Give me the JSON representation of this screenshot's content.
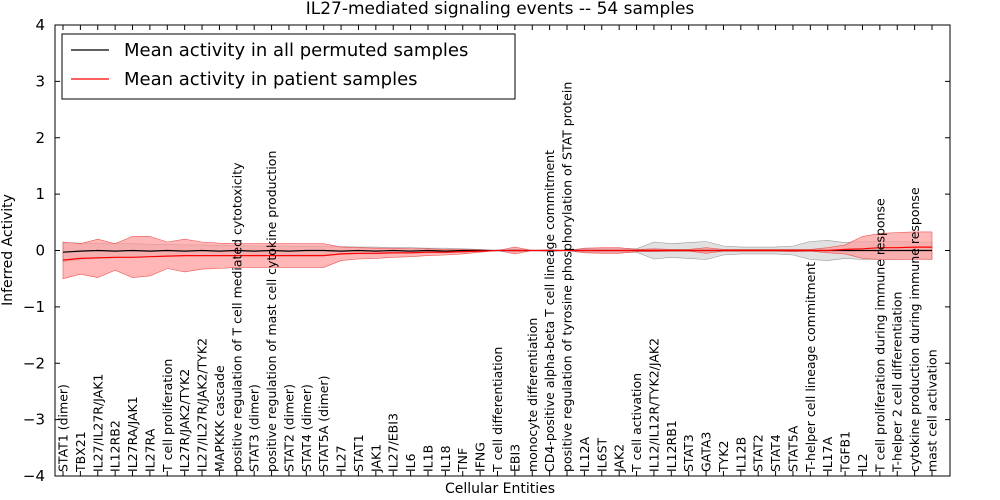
{
  "chart_data": {
    "type": "line",
    "title": "IL27-mediated signaling events -- 54 samples",
    "xlabel": "Cellular Entities",
    "ylabel": "Inferred Activity",
    "ylim": [
      -4,
      4
    ],
    "yticks": [
      "4",
      "3",
      "2",
      "1",
      "0",
      "−1",
      "−2",
      "−3",
      "−4"
    ],
    "ytick_values": [
      4,
      3,
      2,
      1,
      0,
      -1,
      -2,
      -3,
      -4
    ],
    "legend_position": "top-left",
    "categories": [
      "STAT1 (dimer)",
      "TBX21",
      "IL27/IL27R/JAK1",
      "IL12RB2",
      "IL27RA/JAK1",
      "IL27RA",
      "T cell proliferation",
      "IL27R/JAK2/TYK2",
      "IL27/IL27R/JAK2/TYK2",
      "MAPKKK cascade",
      "positive regulation of T cell mediated cytotoxicity",
      "STAT3 (dimer)",
      "positive regulation of mast cell cytokine production",
      "STAT2 (dimer)",
      "STAT4 (dimer)",
      "STAT5A (dimer)",
      "IL27",
      "STAT1",
      "JAK1",
      "IL27/EBI3",
      "IL6",
      "IL1B",
      "IL18",
      "TNF",
      "IFNG",
      "T cell differentiation",
      "EBI3",
      "monocyte differentiation",
      "CD4-positive alpha-beta T cell lineage commitment",
      "positive regulation of tyrosine phosphorylation of STAT protein",
      "IL12A",
      "IL6ST",
      "JAK2",
      "T cell activation",
      "IL12/IL12R/TYK2/JAK2",
      "IL12RB1",
      "STAT3",
      "GATA3",
      "TYK2",
      "IL12B",
      "STAT2",
      "STAT4",
      "STAT5A",
      "T-helper cell lineage commitment",
      "IL17A",
      "TGFB1",
      "IL2",
      "T cell proliferation during immune response",
      "T-helper 2 cell differentiation",
      "cytokine production during immune response",
      "mast cell activation"
    ],
    "series": [
      {
        "name": "Mean activity in all permuted samples",
        "color": "#000000",
        "values": [
          -0.03,
          -0.01,
          0.0,
          -0.01,
          0.0,
          -0.01,
          0.0,
          -0.01,
          0.0,
          -0.01,
          0.0,
          -0.01,
          0.0,
          -0.01,
          0.0,
          0.0,
          -0.01,
          0.0,
          -0.01,
          0.0,
          -0.01,
          0.0,
          -0.01,
          0.0,
          0.0,
          0.0,
          0.0,
          0.0,
          0.0,
          0.0,
          0.0,
          0.0,
          0.0,
          0.0,
          0.0,
          0.0,
          0.0,
          0.0,
          0.0,
          0.0,
          0.0,
          0.0,
          0.0,
          0.0,
          0.0,
          0.0,
          0.0,
          0.0,
          0.0,
          0.0,
          0.0
        ],
        "lower": [
          -0.2,
          -0.16,
          -0.14,
          -0.13,
          -0.12,
          -0.11,
          -0.1,
          -0.1,
          -0.09,
          -0.09,
          -0.09,
          -0.08,
          -0.08,
          -0.08,
          -0.07,
          -0.07,
          -0.07,
          -0.06,
          -0.06,
          -0.05,
          -0.05,
          -0.04,
          -0.04,
          -0.03,
          -0.02,
          0.0,
          -0.02,
          0.0,
          -0.01,
          0.0,
          -0.03,
          -0.04,
          -0.04,
          -0.03,
          -0.15,
          -0.12,
          -0.14,
          -0.16,
          -0.08,
          -0.06,
          -0.06,
          -0.06,
          -0.08,
          -0.16,
          -0.18,
          -0.14,
          -0.16,
          -0.16,
          -0.16,
          -0.15,
          -0.15
        ],
        "upper": [
          0.14,
          0.13,
          0.13,
          0.12,
          0.12,
          0.11,
          0.11,
          0.1,
          0.1,
          0.09,
          0.09,
          0.08,
          0.08,
          0.08,
          0.07,
          0.07,
          0.07,
          0.06,
          0.06,
          0.05,
          0.05,
          0.04,
          0.04,
          0.03,
          0.02,
          0.0,
          0.02,
          0.0,
          0.01,
          0.0,
          0.03,
          0.04,
          0.04,
          0.03,
          0.15,
          0.12,
          0.14,
          0.16,
          0.08,
          0.06,
          0.06,
          0.06,
          0.08,
          0.16,
          0.18,
          0.14,
          0.16,
          0.16,
          0.16,
          0.15,
          0.15
        ]
      },
      {
        "name": "Mean activity in patient samples",
        "color": "#ff0000",
        "fill": "#ff9999",
        "values": [
          -0.17,
          -0.14,
          -0.13,
          -0.12,
          -0.12,
          -0.11,
          -0.1,
          -0.09,
          -0.09,
          -0.09,
          -0.09,
          -0.09,
          -0.09,
          -0.09,
          -0.09,
          -0.09,
          -0.06,
          -0.05,
          -0.05,
          -0.04,
          -0.04,
          -0.03,
          -0.03,
          -0.02,
          -0.01,
          0.0,
          0.0,
          0.0,
          0.0,
          0.0,
          0.0,
          0.0,
          0.0,
          0.0,
          0.0,
          0.0,
          0.0,
          0.0,
          0.0,
          0.0,
          0.0,
          0.0,
          0.0,
          0.0,
          0.0,
          0.02,
          0.03,
          0.05,
          0.05,
          0.06,
          0.06
        ],
        "lower": [
          -0.5,
          -0.42,
          -0.48,
          -0.35,
          -0.48,
          -0.45,
          -0.32,
          -0.38,
          -0.33,
          -0.32,
          -0.3,
          -0.3,
          -0.3,
          -0.3,
          -0.3,
          -0.3,
          -0.18,
          -0.15,
          -0.14,
          -0.12,
          -0.11,
          -0.09,
          -0.08,
          -0.06,
          -0.03,
          0.0,
          -0.06,
          0.0,
          -0.01,
          0.0,
          -0.04,
          -0.05,
          -0.05,
          -0.02,
          -0.02,
          -0.01,
          -0.01,
          -0.05,
          -0.01,
          -0.01,
          -0.01,
          -0.01,
          -0.02,
          -0.01,
          -0.04,
          -0.06,
          -0.14,
          -0.16,
          -0.16,
          -0.16,
          -0.16
        ],
        "upper": [
          0.15,
          0.12,
          0.2,
          0.12,
          0.25,
          0.25,
          0.15,
          0.2,
          0.15,
          0.13,
          0.12,
          0.12,
          0.12,
          0.12,
          0.12,
          0.12,
          0.06,
          0.05,
          0.04,
          0.04,
          0.03,
          0.03,
          0.02,
          0.02,
          0.01,
          0.0,
          0.06,
          0.0,
          0.01,
          0.0,
          0.04,
          0.05,
          0.05,
          0.02,
          0.03,
          0.02,
          0.02,
          0.05,
          0.02,
          0.02,
          0.02,
          0.02,
          0.02,
          0.02,
          0.05,
          0.1,
          0.25,
          0.3,
          0.32,
          0.33,
          0.33
        ]
      }
    ]
  }
}
